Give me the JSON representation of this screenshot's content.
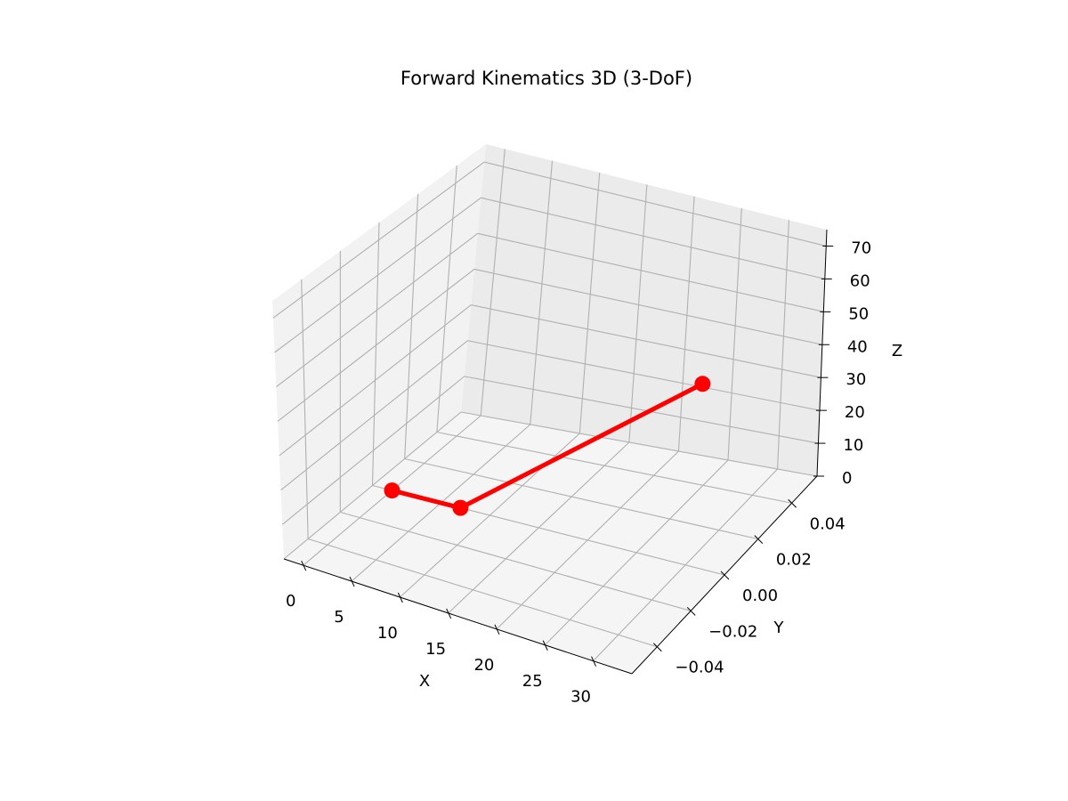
{
  "chart_data": {
    "type": "line",
    "projection": "3d",
    "title": "Forward Kinematics 3D (3-DoF)",
    "xlabel": "X",
    "ylabel": "Y",
    "zlabel": "Z",
    "xlim": [
      -2,
      34
    ],
    "ylim": [
      -0.055,
      0.055
    ],
    "zlim": [
      0,
      75
    ],
    "xticks": [
      0,
      5,
      10,
      15,
      20,
      25,
      30
    ],
    "yticks": [
      -0.04,
      -0.02,
      0.0,
      0.02,
      0.04
    ],
    "zticks": [
      0,
      10,
      20,
      30,
      40,
      50,
      60,
      70
    ],
    "xtick_labels": [
      "0",
      "5",
      "10",
      "15",
      "20",
      "25",
      "30"
    ],
    "ytick_labels": [
      "−0.04",
      "−0.02",
      "0.00",
      "0.02",
      "0.04"
    ],
    "ztick_labels": [
      "0",
      "10",
      "20",
      "30",
      "40",
      "50",
      "60",
      "70"
    ],
    "grid": true,
    "series": [
      {
        "color": "#ff0000",
        "marker": "circle",
        "points": [
          {
            "x": 0,
            "y": 0,
            "z": 0
          },
          {
            "x": 7,
            "y": 0,
            "z": 0
          },
          {
            "x": 32,
            "y": 0,
            "z": 52
          }
        ]
      }
    ]
  }
}
